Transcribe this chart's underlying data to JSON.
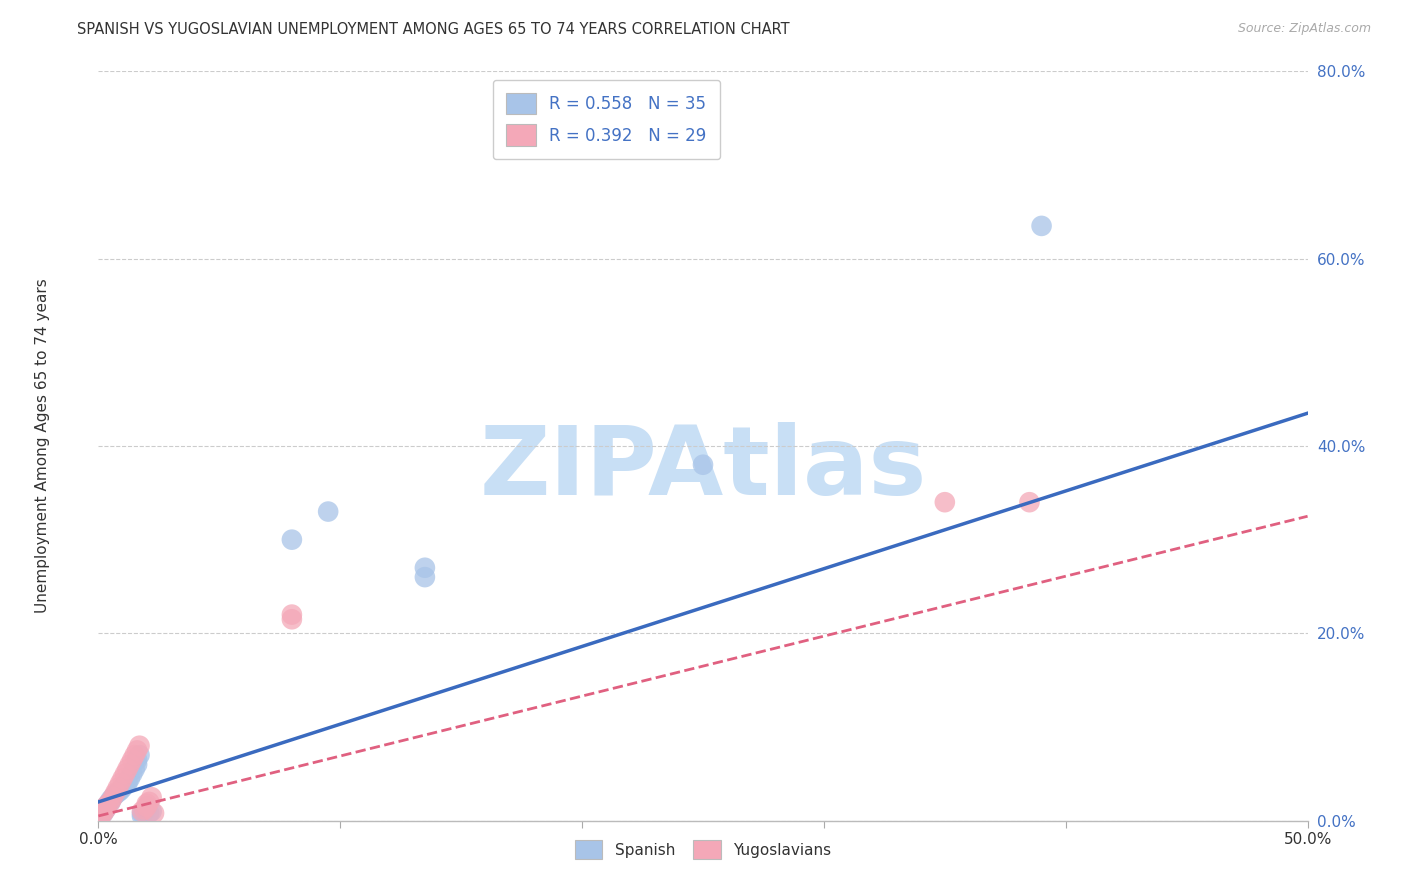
{
  "title": "SPANISH VS YUGOSLAVIAN UNEMPLOYMENT AMONG AGES 65 TO 74 YEARS CORRELATION CHART",
  "source": "Source: ZipAtlas.com",
  "ylabel": "Unemployment Among Ages 65 to 74 years",
  "xlim": [
    0.0,
    0.5
  ],
  "ylim": [
    0.0,
    0.8
  ],
  "xticks": [
    0.0,
    0.1,
    0.2,
    0.3,
    0.4,
    0.5
  ],
  "yticks": [
    0.0,
    0.2,
    0.4,
    0.6,
    0.8
  ],
  "spanish_x": [
    0.001,
    0.002,
    0.002,
    0.003,
    0.003,
    0.004,
    0.005,
    0.005,
    0.006,
    0.007,
    0.008,
    0.009,
    0.01,
    0.011,
    0.012,
    0.012,
    0.013,
    0.014,
    0.015,
    0.016,
    0.016,
    0.017,
    0.018,
    0.018,
    0.019,
    0.02,
    0.02,
    0.021,
    0.022,
    0.08,
    0.095,
    0.135,
    0.135,
    0.25,
    0.39
  ],
  "spanish_y": [
    0.005,
    0.008,
    0.01,
    0.012,
    0.015,
    0.018,
    0.02,
    0.022,
    0.025,
    0.028,
    0.03,
    0.032,
    0.035,
    0.038,
    0.04,
    0.042,
    0.045,
    0.05,
    0.055,
    0.06,
    0.065,
    0.07,
    0.005,
    0.008,
    0.01,
    0.012,
    0.015,
    0.008,
    0.01,
    0.3,
    0.33,
    0.27,
    0.26,
    0.38,
    0.635
  ],
  "yugo_x": [
    0.001,
    0.002,
    0.003,
    0.003,
    0.004,
    0.005,
    0.006,
    0.007,
    0.008,
    0.009,
    0.01,
    0.011,
    0.012,
    0.013,
    0.014,
    0.015,
    0.016,
    0.017,
    0.018,
    0.019,
    0.02,
    0.02,
    0.021,
    0.022,
    0.023,
    0.08,
    0.08,
    0.35,
    0.385
  ],
  "yugo_y": [
    0.005,
    0.008,
    0.012,
    0.015,
    0.018,
    0.02,
    0.025,
    0.03,
    0.035,
    0.04,
    0.045,
    0.05,
    0.055,
    0.06,
    0.065,
    0.07,
    0.075,
    0.08,
    0.01,
    0.012,
    0.015,
    0.018,
    0.02,
    0.025,
    0.008,
    0.215,
    0.22,
    0.34,
    0.34
  ],
  "spanish_color": "#a8c4e8",
  "yugo_color": "#f4a8b8",
  "spanish_line_color": "#3a6abf",
  "yugo_line_color": "#e06080",
  "trend_blue_x0": 0.0,
  "trend_blue_y0": 0.02,
  "trend_blue_x1": 0.5,
  "trend_blue_y1": 0.435,
  "trend_pink_x0": 0.0,
  "trend_pink_y0": 0.005,
  "trend_pink_x1": 0.5,
  "trend_pink_y1": 0.325,
  "R_spanish": 0.558,
  "N_spanish": 35,
  "R_yugo": 0.392,
  "N_yugo": 29,
  "watermark": "ZIPAtlas",
  "watermark_color": "#c8dff5",
  "background_color": "#ffffff",
  "grid_color": "#cccccc"
}
